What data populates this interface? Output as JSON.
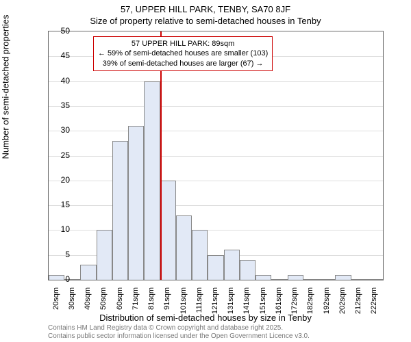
{
  "title": {
    "line1": "57, UPPER HILL PARK, TENBY, SA70 8JF",
    "line2": "Size of property relative to semi-detached houses in Tenby"
  },
  "ylabel": "Number of semi-detached properties",
  "xlabel": "Distribution of semi-detached houses by size in Tenby",
  "footer": {
    "line1": "Contains HM Land Registry data © Crown copyright and database right 2025.",
    "line2": "Contains public sector information licensed under the Open Government Licence v3.0."
  },
  "chart": {
    "type": "histogram",
    "ylim": [
      0,
      50
    ],
    "ytick_step": 5,
    "background_color": "#ffffff",
    "grid_color": "#dddddd",
    "bar_fill": "#e2e9f6",
    "bar_border": "#888888",
    "marker_color": "#cc0000",
    "annotation_border": "#cc0000",
    "categories": [
      "20sqm",
      "30sqm",
      "40sqm",
      "50sqm",
      "60sqm",
      "71sqm",
      "81sqm",
      "91sqm",
      "101sqm",
      "111sqm",
      "121sqm",
      "131sqm",
      "141sqm",
      "151sqm",
      "161sqm",
      "172sqm",
      "182sqm",
      "192sqm",
      "202sqm",
      "212sqm",
      "222sqm"
    ],
    "values": [
      1,
      0,
      3,
      10,
      28,
      31,
      40,
      20,
      13,
      10,
      5,
      6,
      4,
      1,
      0,
      1,
      0,
      0,
      1,
      0,
      0
    ],
    "marker_index": 7,
    "annotation": {
      "line1": "57 UPPER HILL PARK: 89sqm",
      "line2": "← 59% of semi-detached houses are smaller (103)",
      "line3": "39% of semi-detached houses are larger (67) →"
    },
    "title_fontsize": 13,
    "label_fontsize": 13,
    "tick_fontsize": 12
  }
}
